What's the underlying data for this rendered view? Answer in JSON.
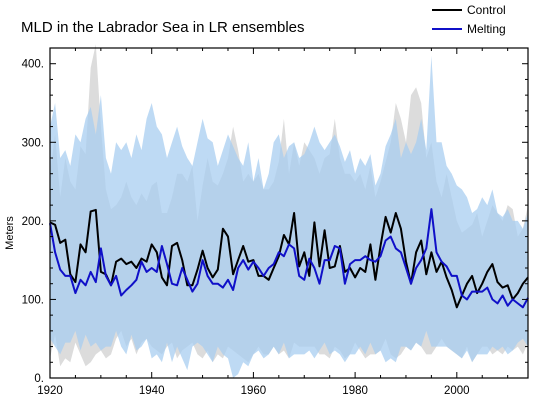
{
  "chart_data": {
    "type": "line",
    "title": "MLD in the Labrador Sea in LR ensembles",
    "ylabel": "Meters",
    "xlabel": "",
    "xlim": [
      1920,
      2014
    ],
    "ylim": [
      0,
      420
    ],
    "xticks": [
      1920,
      1940,
      1960,
      1980,
      2000
    ],
    "xtick_labels": [
      "1920",
      "1940",
      "1960",
      "1980",
      "2000"
    ],
    "yticks": [
      0,
      100,
      200,
      300,
      400
    ],
    "ytick_labels": [
      "0.",
      "100.",
      "200.",
      "300.",
      "400."
    ],
    "legend_position": "top-right",
    "colors": {
      "control": "#000000",
      "melting": "#1010c8",
      "control_band": "#dcdcdc",
      "melting_band": "#a8cdf0"
    },
    "x": [
      1920,
      1921,
      1922,
      1923,
      1924,
      1925,
      1926,
      1927,
      1928,
      1929,
      1930,
      1931,
      1932,
      1933,
      1934,
      1935,
      1936,
      1937,
      1938,
      1939,
      1940,
      1941,
      1942,
      1943,
      1944,
      1945,
      1946,
      1947,
      1948,
      1949,
      1950,
      1951,
      1952,
      1953,
      1954,
      1955,
      1956,
      1957,
      1958,
      1959,
      1960,
      1961,
      1962,
      1963,
      1964,
      1965,
      1966,
      1967,
      1968,
      1969,
      1970,
      1971,
      1972,
      1973,
      1974,
      1975,
      1976,
      1977,
      1978,
      1979,
      1980,
      1981,
      1982,
      1983,
      1984,
      1985,
      1986,
      1987,
      1988,
      1989,
      1990,
      1991,
      1992,
      1993,
      1994,
      1995,
      1996,
      1997,
      1998,
      1999,
      2000,
      2001,
      2002,
      2003,
      2004,
      2005,
      2006,
      2007,
      2008,
      2009,
      2010,
      2011,
      2012,
      2013,
      2014
    ],
    "series": [
      {
        "name": "Control",
        "values": [
          198,
          195,
          172,
          176,
          132,
          122,
          170,
          160,
          212,
          214,
          135,
          132,
          118,
          148,
          152,
          145,
          148,
          140,
          152,
          148,
          170,
          160,
          128,
          118,
          168,
          172,
          150,
          118,
          118,
          138,
          162,
          140,
          128,
          138,
          190,
          180,
          132,
          150,
          168,
          148,
          150,
          130,
          130,
          125,
          140,
          155,
          182,
          170,
          210,
          142,
          160,
          130,
          198,
          142,
          188,
          140,
          142,
          168,
          135,
          140,
          128,
          140,
          135,
          170,
          125,
          168,
          205,
          185,
          210,
          190,
          148,
          120,
          160,
          175,
          132,
          160,
          135,
          148,
          128,
          112,
          90,
          105,
          120,
          130,
          108,
          120,
          135,
          145,
          122,
          115,
          118,
          100,
          108,
          120,
          128
        ]
      },
      {
        "name": "Melting",
        "values": [
          197,
          160,
          138,
          130,
          130,
          108,
          125,
          118,
          135,
          122,
          165,
          130,
          118,
          130,
          105,
          112,
          118,
          125,
          148,
          135,
          140,
          135,
          168,
          145,
          120,
          118,
          140,
          125,
          110,
          120,
          150,
          130,
          120,
          120,
          115,
          125,
          112,
          140,
          150,
          138,
          148,
          140,
          130,
          140,
          145,
          160,
          155,
          170,
          165,
          130,
          125,
          152,
          140,
          120,
          150,
          150,
          168,
          165,
          120,
          145,
          150,
          150,
          155,
          150,
          148,
          155,
          175,
          180,
          165,
          160,
          140,
          120,
          140,
          150,
          165,
          215,
          160,
          148,
          142,
          130,
          130,
          105,
          100,
          110,
          110,
          110,
          115,
          100,
          95,
          105,
          92,
          100,
          95,
          90,
          102
        ]
      }
    ],
    "bands": [
      {
        "name": "Control spread",
        "lower": [
          25,
          55,
          15,
          25,
          20,
          45,
          30,
          15,
          20,
          30,
          35,
          25,
          30,
          50,
          60,
          40,
          50,
          30,
          45,
          50,
          40,
          35,
          30,
          40,
          45,
          25,
          35,
          40,
          45,
          30,
          25,
          35,
          20,
          30,
          25,
          40,
          35,
          30,
          25,
          20,
          30,
          40,
          30,
          30,
          40,
          30,
          35,
          25,
          45,
          40,
          40,
          40,
          40,
          30,
          30,
          25,
          40,
          35,
          25,
          30,
          45,
          35,
          25,
          30,
          30,
          35,
          50,
          30,
          25,
          30,
          40,
          35,
          45,
          40,
          30,
          30,
          40,
          50,
          40,
          35,
          30,
          25,
          40,
          20,
          30,
          40,
          40,
          30,
          35,
          30,
          40,
          35,
          40,
          30,
          45
        ],
        "upper": [
          260,
          310,
          230,
          280,
          250,
          240,
          295,
          285,
          395,
          425,
          320,
          240,
          215,
          220,
          230,
          250,
          230,
          220,
          235,
          225,
          245,
          250,
          210,
          210,
          230,
          260,
          260,
          250,
          270,
          200,
          245,
          280,
          250,
          245,
          260,
          280,
          320,
          290,
          250,
          260,
          250,
          260,
          240,
          240,
          250,
          275,
          330,
          260,
          300,
          270,
          300,
          290,
          280,
          260,
          280,
          285,
          330,
          280,
          260,
          260,
          250,
          260,
          240,
          270,
          230,
          250,
          275,
          300,
          350,
          330,
          300,
          360,
          370,
          350,
          280,
          300,
          250,
          230,
          260,
          230,
          200,
          185,
          190,
          195,
          210,
          180,
          200,
          220,
          210,
          200,
          220,
          215,
          180,
          190,
          220
        ]
      },
      {
        "name": "Melting spread",
        "lower": [
          50,
          40,
          30,
          45,
          45,
          60,
          35,
          55,
          40,
          45,
          35,
          40,
          40,
          60,
          40,
          30,
          55,
          35,
          40,
          50,
          25,
          30,
          20,
          45,
          20,
          40,
          25,
          10,
          40,
          45,
          40,
          30,
          20,
          40,
          30,
          25,
          0,
          5,
          20,
          15,
          30,
          35,
          25,
          30,
          40,
          30,
          45,
          25,
          30,
          30,
          30,
          35,
          25,
          35,
          45,
          30,
          35,
          30,
          20,
          30,
          30,
          40,
          30,
          45,
          30,
          35,
          20,
          25,
          20,
          40,
          40,
          35,
          45,
          40,
          60,
          40,
          40,
          40,
          40,
          35,
          30,
          25,
          35,
          20,
          30,
          30,
          30,
          40,
          35,
          40,
          30,
          35,
          45,
          50,
          40
        ],
        "upper": [
          320,
          350,
          280,
          290,
          270,
          310,
          300,
          330,
          345,
          310,
          360,
          280,
          260,
          300,
          290,
          300,
          280,
          310,
          290,
          330,
          350,
          320,
          310,
          280,
          300,
          320,
          295,
          280,
          270,
          300,
          330,
          305,
          300,
          270,
          290,
          310,
          295,
          280,
          270,
          300,
          250,
          280,
          240,
          260,
          300,
          310,
          280,
          295,
          300,
          280,
          285,
          300,
          320,
          300,
          290,
          300,
          310,
          295,
          275,
          290,
          260,
          280,
          270,
          285,
          245,
          260,
          295,
          310,
          330,
          280,
          300,
          285,
          300,
          330,
          290,
          410,
          300,
          300,
          270,
          260,
          245,
          240,
          230,
          210,
          215,
          230,
          220,
          240,
          210,
          205,
          215,
          200,
          200,
          190,
          210
        ]
      }
    ],
    "legend": [
      "Control",
      "Melting"
    ]
  }
}
